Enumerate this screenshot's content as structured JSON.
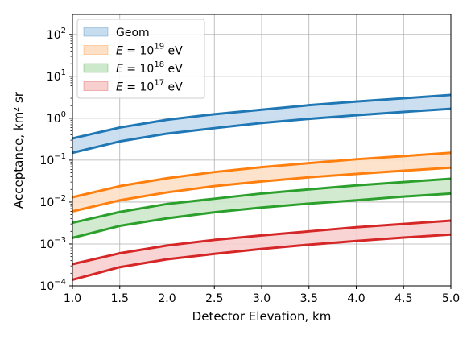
{
  "chart_data": {
    "type": "area",
    "xlabel": "Detector Elevation, km",
    "ylabel": "Acceptance, km² sr",
    "xlim": [
      1.0,
      5.0
    ],
    "ylim": [
      0.0001,
      300
    ],
    "yscale": "log",
    "grid": true,
    "legend_position": "top-left",
    "x_ticks": [
      "1.0",
      "1.5",
      "2.0",
      "2.5",
      "3.0",
      "3.5",
      "4.0",
      "4.5",
      "5.0"
    ],
    "y_ticks": [
      {
        "value": 0.0001,
        "base": "10",
        "exp": "−4"
      },
      {
        "value": 0.001,
        "base": "10",
        "exp": "−3"
      },
      {
        "value": 0.01,
        "base": "10",
        "exp": "−2"
      },
      {
        "value": 0.1,
        "base": "10",
        "exp": "−1"
      },
      {
        "value": 1,
        "base": "10",
        "exp": "0"
      },
      {
        "value": 10,
        "base": "10",
        "exp": "1"
      },
      {
        "value": 100,
        "base": "10",
        "exp": "2"
      }
    ],
    "x": [
      1.0,
      1.5,
      2.0,
      2.5,
      3.0,
      3.5,
      4.0,
      4.5,
      5.0
    ],
    "series": [
      {
        "name": "Geom",
        "legend": {
          "prefix": "Geom",
          "base": "",
          "exp": "",
          "suffix": ""
        },
        "color": "#1f77b4",
        "fill": "#c6dcef",
        "upper": [
          0.33,
          0.6,
          0.92,
          1.25,
          1.6,
          2.05,
          2.5,
          3.0,
          3.6
        ],
        "lower": [
          0.15,
          0.28,
          0.43,
          0.58,
          0.77,
          0.97,
          1.18,
          1.42,
          1.68
        ]
      },
      {
        "name": "E = 10^19 eV",
        "legend": {
          "prefix": "E = ",
          "base": "10",
          "exp": "19",
          "suffix": " eV"
        },
        "color": "#ff7f0e",
        "fill": "#fde0c5",
        "upper": [
          0.013,
          0.024,
          0.037,
          0.052,
          0.068,
          0.085,
          0.105,
          0.125,
          0.15
        ],
        "lower": [
          0.006,
          0.011,
          0.017,
          0.024,
          0.031,
          0.039,
          0.047,
          0.056,
          0.066
        ]
      },
      {
        "name": "E = 10^18 eV",
        "legend": {
          "prefix": "E = ",
          "base": "10",
          "exp": "18",
          "suffix": " eV"
        },
        "color": "#2ca02c",
        "fill": "#cde9cb",
        "upper": [
          0.0032,
          0.0058,
          0.009,
          0.012,
          0.016,
          0.02,
          0.025,
          0.03,
          0.036
        ],
        "lower": [
          0.0014,
          0.0027,
          0.0041,
          0.0057,
          0.0074,
          0.0092,
          0.011,
          0.0135,
          0.016
        ]
      },
      {
        "name": "E = 10^17 eV",
        "legend": {
          "prefix": "E = ",
          "base": "10",
          "exp": "17",
          "suffix": " eV"
        },
        "color": "#d62728",
        "fill": "#f7cfcf",
        "upper": [
          0.00033,
          0.0006,
          0.00092,
          0.00125,
          0.0016,
          0.002,
          0.0025,
          0.003,
          0.0036
        ],
        "lower": [
          0.00014,
          0.00028,
          0.00043,
          0.00058,
          0.00076,
          0.00096,
          0.00118,
          0.00142,
          0.00168
        ]
      }
    ]
  }
}
